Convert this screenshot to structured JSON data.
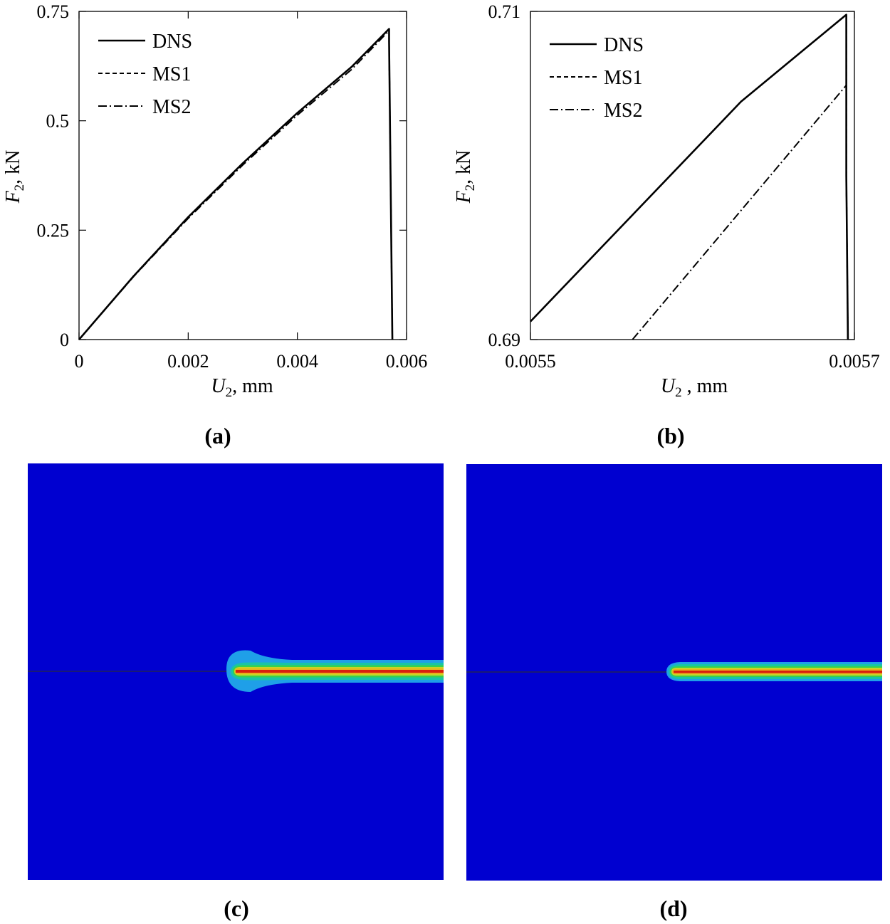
{
  "panels": {
    "a": "(a)",
    "b": "(b)",
    "c": "(c)",
    "d": "(d)"
  },
  "chart_data": [
    {
      "type": "line",
      "panel": "(a)",
      "xlabel": "U2, mm",
      "ylabel": "F2, kN",
      "xlim": [
        0,
        0.006
      ],
      "ylim": [
        0,
        0.75
      ],
      "xticks": [
        0,
        0.002,
        0.004,
        0.006
      ],
      "xticklabels": [
        "0",
        "0.002",
        "0.004",
        "0.006"
      ],
      "yticks": [
        0,
        0.25,
        0.5,
        0.75
      ],
      "yticklabels": [
        "0",
        "0.25",
        "0.5",
        "0.75"
      ],
      "legend_position": "top-left",
      "series": [
        {
          "name": "DNS",
          "style": "solid",
          "x": [
            0,
            0.001,
            0.002,
            0.003,
            0.004,
            0.005,
            0.00568,
            0.00568,
            0.00574
          ],
          "y": [
            0,
            0.145,
            0.28,
            0.403,
            0.518,
            0.624,
            0.71,
            0.68,
            0
          ]
        },
        {
          "name": "MS1",
          "style": "dashed",
          "x": [
            0,
            0.001,
            0.002,
            0.003,
            0.004,
            0.005,
            0.00568,
            0.00568,
            0.00574
          ],
          "y": [
            0,
            0.145,
            0.28,
            0.403,
            0.518,
            0.624,
            0.71,
            0.68,
            0
          ]
        },
        {
          "name": "MS2",
          "style": "dashdot",
          "x": [
            0,
            0.001,
            0.002,
            0.003,
            0.004,
            0.005,
            0.00568,
            0.00568,
            0.00574
          ],
          "y": [
            0,
            0.144,
            0.277,
            0.399,
            0.513,
            0.618,
            0.706,
            0.68,
            0
          ]
        }
      ]
    },
    {
      "type": "line",
      "panel": "(b)",
      "xlabel": "U2 , mm",
      "ylabel": "F2, kN",
      "xlim": [
        0.0055,
        0.0057
      ],
      "ylim": [
        0.69,
        0.71
      ],
      "xticks": [
        0.0055,
        0.0057
      ],
      "xticklabels": [
        "0.0055",
        "0.0057"
      ],
      "yticks": [
        0.69,
        0.71
      ],
      "yticklabels": [
        "0.69",
        "0.71"
      ],
      "legend_position": "top-left",
      "series": [
        {
          "name": "DNS",
          "style": "solid",
          "x": [
            0.0055,
            0.00563,
            0.005695,
            0.005695,
            0.005696
          ],
          "y": [
            0.6911,
            0.7045,
            0.7098,
            0.7,
            0.69
          ]
        },
        {
          "name": "MS1",
          "style": "dashed",
          "x": [
            0.0055,
            0.00563,
            0.005695,
            0.005695,
            0.005696
          ],
          "y": [
            0.6911,
            0.7045,
            0.7098,
            0.7,
            0.69
          ]
        },
        {
          "name": "MS2",
          "style": "dashdot",
          "x": [
            0.005563,
            0.005695,
            0.005695,
            0.005696
          ],
          "y": [
            0.69,
            0.7055,
            0.7,
            0.69
          ]
        }
      ]
    }
  ],
  "fields": {
    "background_color": "#0000d0",
    "crack_colors": [
      "#1f9fe8",
      "#19c4a6",
      "#37d14c",
      "#c8d426",
      "#e8b21a",
      "#d8200e"
    ],
    "c": {
      "crack_tip_fraction": 0.5
    },
    "d": {
      "crack_tip_fraction": 0.5
    }
  }
}
